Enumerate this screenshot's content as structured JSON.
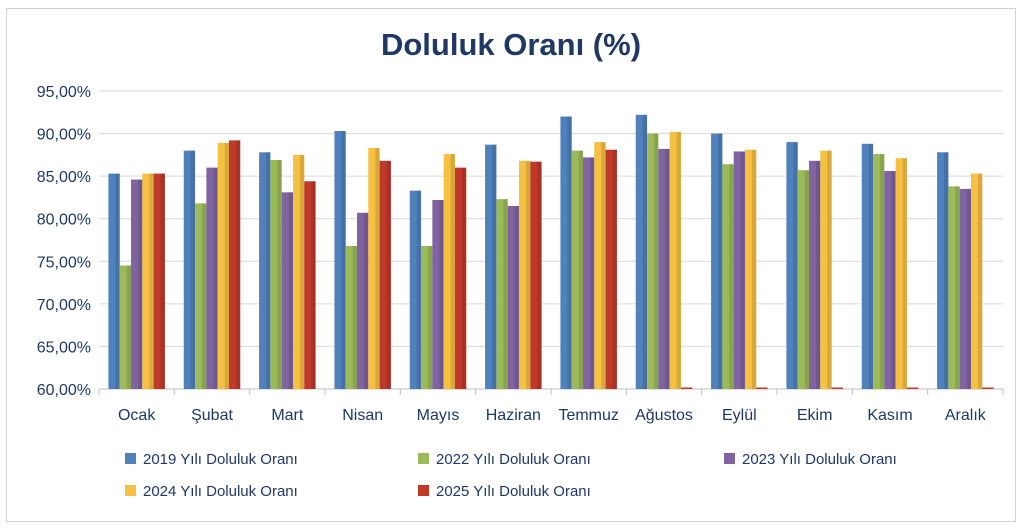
{
  "chart_data": {
    "type": "bar",
    "title": "Doluluk Oranı (%)",
    "xlabel": "",
    "ylabel": "",
    "ylim": [
      60,
      95
    ],
    "yticks": [
      "95,00%",
      "90,00%",
      "85,00%",
      "80,00%",
      "75,00%",
      "70,00%",
      "65,00%",
      "60,00%"
    ],
    "ytick_values": [
      95,
      90,
      85,
      80,
      75,
      70,
      65,
      60
    ],
    "grid": true,
    "legend_position": "bottom",
    "categories": [
      "Ocak",
      "Şubat",
      "Mart",
      "Nisan",
      "Mayıs",
      "Haziran",
      "Temmuz",
      "Ağustos",
      "Eylül",
      "Ekim",
      "Kasım",
      "Aralık"
    ],
    "series": [
      {
        "name": "2019 Yılı Doluluk Oranı",
        "color": "#4f81bd",
        "values": [
          85.3,
          88.0,
          87.8,
          90.3,
          83.3,
          88.7,
          92.0,
          92.2,
          90.0,
          89.0,
          88.8,
          87.8
        ]
      },
      {
        "name": "2022 Yılı Doluluk Oranı",
        "color": "#9bbb59",
        "values": [
          74.5,
          81.8,
          86.9,
          76.8,
          76.8,
          82.3,
          88.0,
          90.0,
          86.4,
          85.7,
          87.6,
          83.8
        ]
      },
      {
        "name": "2023 Yılı Doluluk Oranı",
        "color": "#8064a2",
        "values": [
          84.6,
          86.0,
          83.1,
          80.7,
          82.2,
          81.5,
          87.2,
          88.2,
          87.9,
          86.8,
          85.6,
          83.5
        ]
      },
      {
        "name": "2024 Yılı Doluluk Oranı",
        "color": "#f6c142",
        "values": [
          85.3,
          88.9,
          87.5,
          88.3,
          87.6,
          86.8,
          89.0,
          90.2,
          88.1,
          88.0,
          87.1,
          85.3
        ]
      },
      {
        "name": "2025 Yılı Doluluk Oranı",
        "color": "#c0392b",
        "values": [
          85.3,
          89.2,
          84.4,
          86.8,
          86.0,
          86.7,
          88.1,
          null,
          null,
          null,
          null,
          null
        ]
      }
    ]
  }
}
